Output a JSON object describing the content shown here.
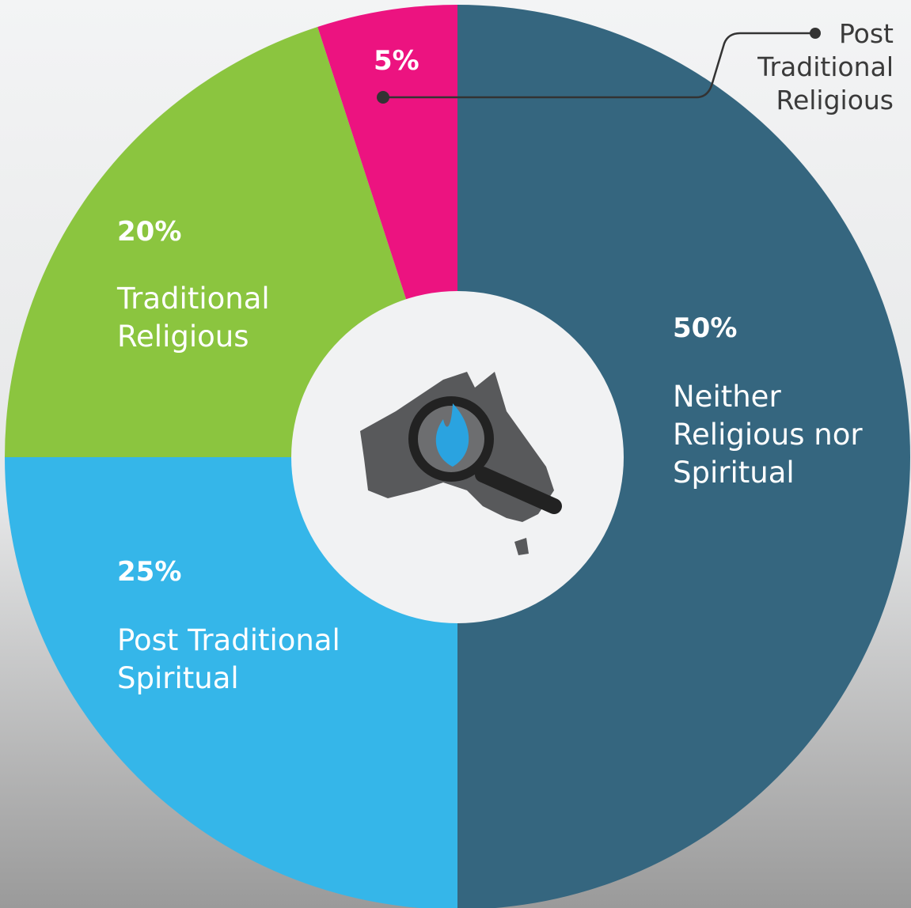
{
  "chart_data": {
    "type": "pie",
    "categories": [
      "Neither Religious nor Spiritual",
      "Post Traditional Spiritual",
      "Traditional Religious",
      "Post Traditional Religious"
    ],
    "values": [
      50,
      25,
      20,
      5
    ],
    "value_labels": [
      "50%",
      "25%",
      "20%",
      "5%"
    ],
    "colors": [
      "#35667f",
      "#35b6e9",
      "#8bc53f",
      "#ec1380"
    ]
  }
}
